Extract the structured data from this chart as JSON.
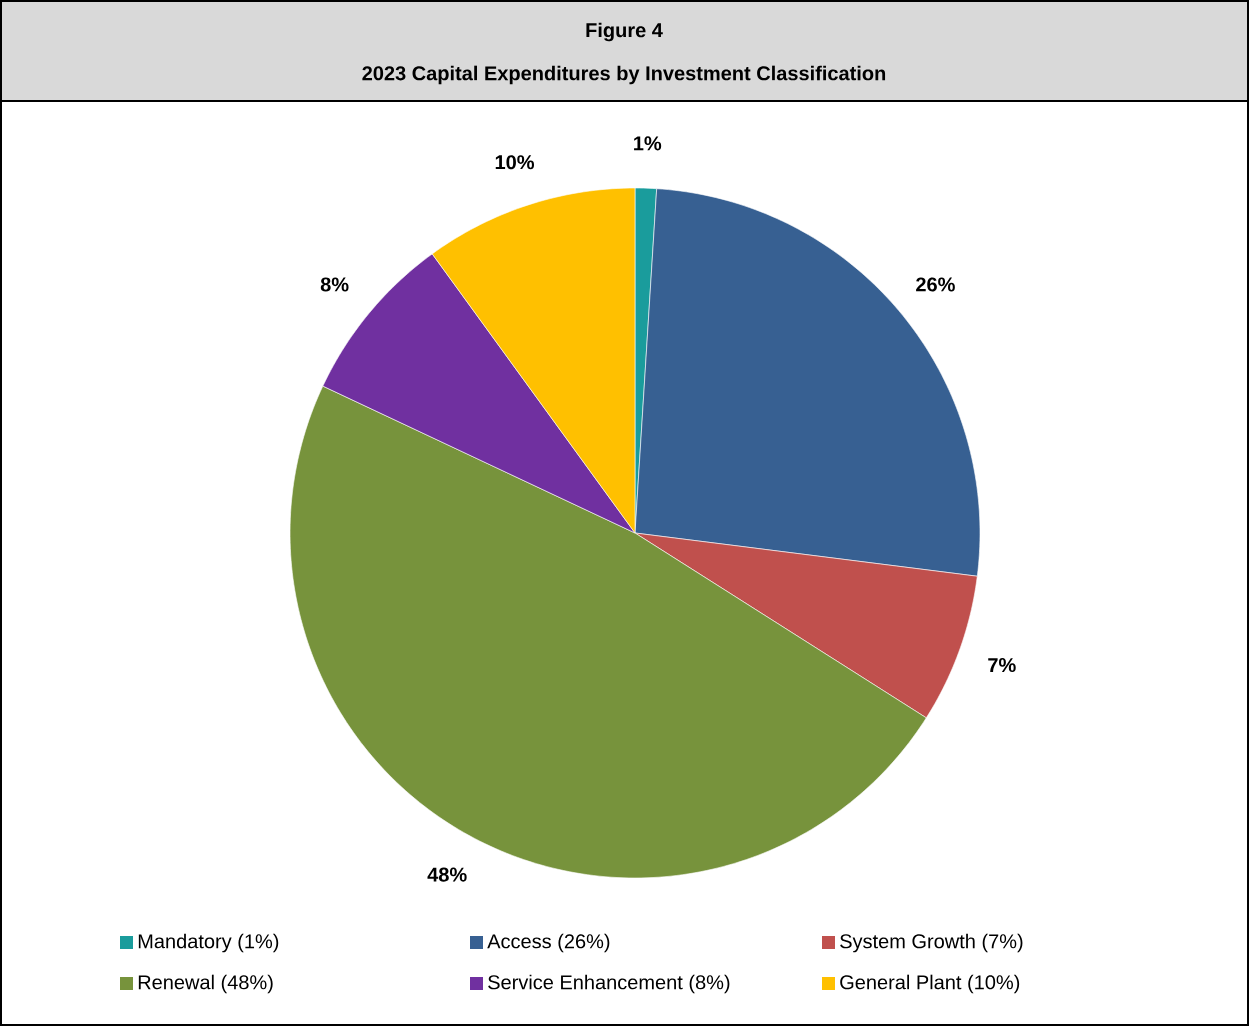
{
  "chart_data": {
    "type": "pie",
    "title": "Figure 4",
    "subtitle": "2023 Capital Expenditures by Investment Classification",
    "categories": [
      "Mandatory (1%)",
      "Access (26%)",
      "System Growth (7%)",
      "Renewal (48%)",
      "Service Enhancement (8%)",
      "General Plant (10%)"
    ],
    "values": [
      1,
      26,
      7,
      48,
      8,
      10
    ],
    "colors": [
      "#1a9c9c",
      "#376092",
      "#c0504d",
      "#77933c",
      "#7030a0",
      "#ffc000"
    ],
    "value_labels": [
      "1%",
      "26%",
      "7%",
      "48%",
      "8%",
      "10%"
    ],
    "legend": "bottom"
  }
}
